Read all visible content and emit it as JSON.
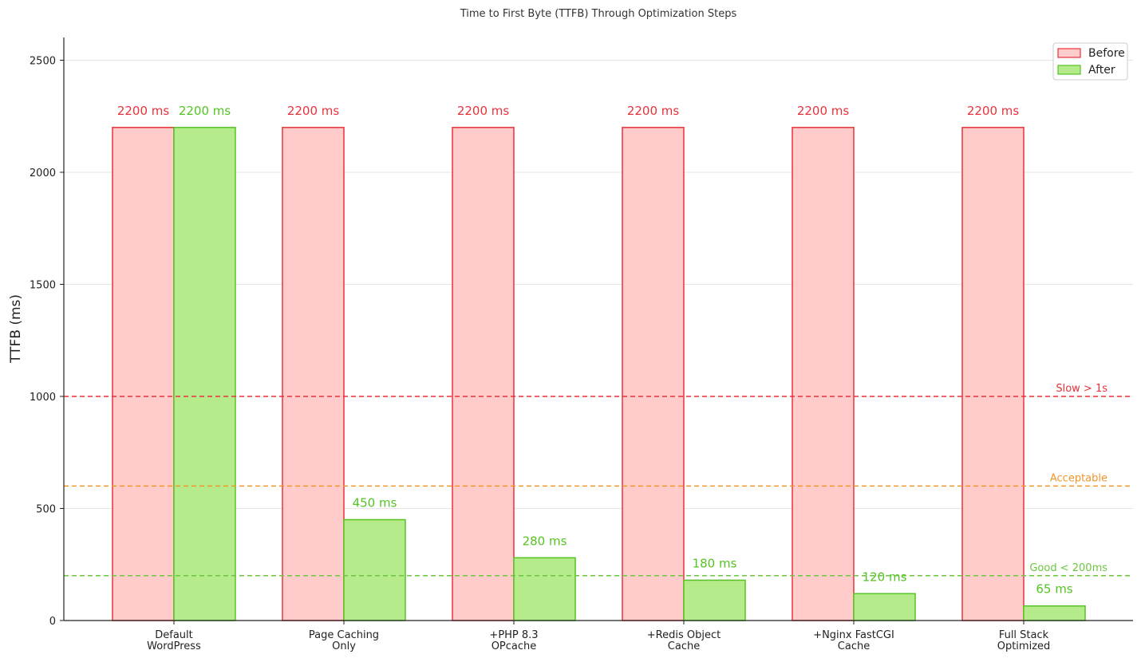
{
  "chart_data": {
    "type": "bar",
    "title": "Time to First Byte (TTFB) Through Optimization Steps",
    "xlabel": "",
    "ylabel": "TTFB (ms)",
    "ylim": [
      0,
      2600
    ],
    "yticks": [
      0,
      500,
      1000,
      1500,
      2000,
      2500
    ],
    "grid": "horizontal",
    "legend_position": "top-right",
    "categories": [
      [
        "Default",
        "WordPress"
      ],
      [
        "Page Caching",
        "Only"
      ],
      [
        "+PHP 8.3",
        "OPcache"
      ],
      [
        "+Redis Object",
        "Cache"
      ],
      [
        "+Nginx FastCGI",
        "Cache"
      ],
      [
        "Full Stack",
        "Optimized"
      ]
    ],
    "series": [
      {
        "name": "Before",
        "values": [
          2200,
          2200,
          2200,
          2200,
          2200,
          2200
        ],
        "labels": [
          "2200 ms",
          "2200 ms",
          "2200 ms",
          "2200 ms",
          "2200 ms",
          "2200 ms"
        ],
        "fill": "#ffcccb",
        "stroke": "#e8323c"
      },
      {
        "name": "After",
        "values": [
          2200,
          450,
          280,
          180,
          120,
          65
        ],
        "labels": [
          "2200 ms",
          "450 ms",
          "280 ms",
          "180 ms",
          "120 ms",
          "65 ms"
        ],
        "fill": "#b5eb8b",
        "stroke": "#56c424"
      }
    ],
    "reference_lines": [
      {
        "value": 1000,
        "label": "Slow > 1s",
        "color": "#e8323c"
      },
      {
        "value": 600,
        "label": "Acceptable",
        "color": "#f0962a"
      },
      {
        "value": 200,
        "label": "Good < 200ms",
        "color": "#6cc63f"
      }
    ],
    "colors": {
      "before_label": "#e8323c",
      "after_label": "#56c424",
      "grid": "#e6e6e6",
      "axis": "#222222"
    }
  }
}
